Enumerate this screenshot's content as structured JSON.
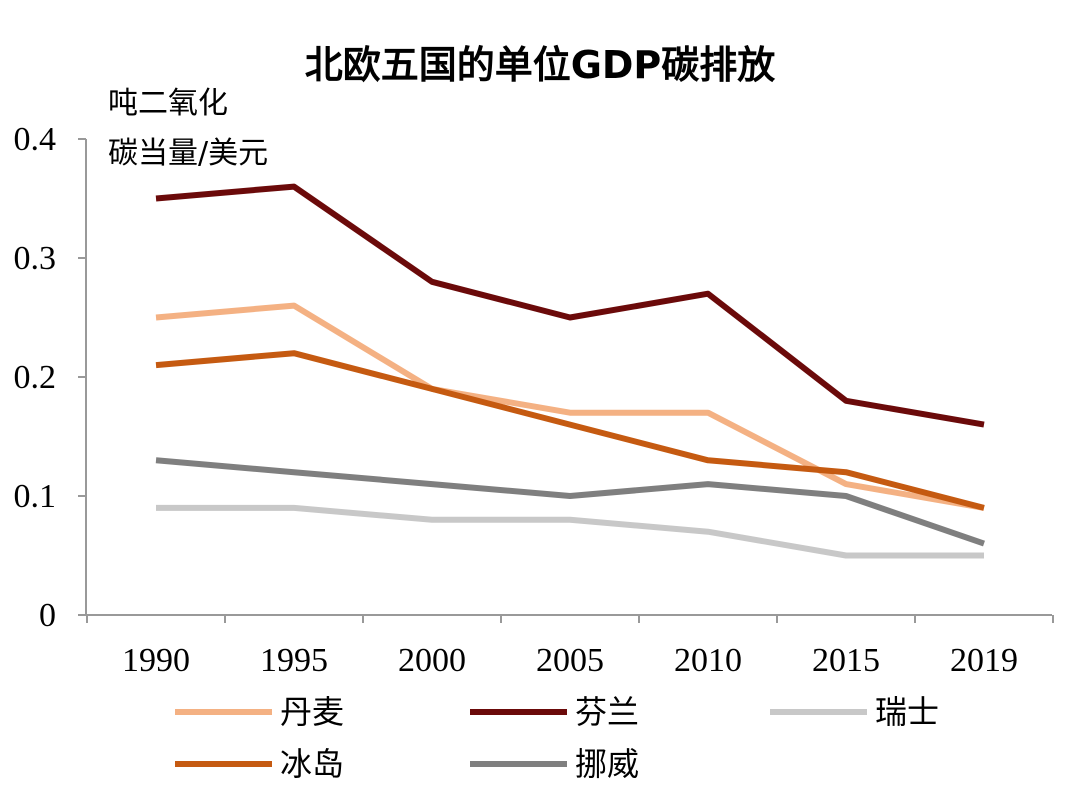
{
  "chart_data": {
    "type": "line",
    "title": "北欧五国的单位GDP碳排放",
    "ylabel_lines": [
      "吨二氧化",
      "碳当量/美元"
    ],
    "xlabel": "",
    "categories": [
      "1990",
      "1995",
      "2000",
      "2005",
      "2010",
      "2015",
      "2019"
    ],
    "ylim": [
      0,
      0.4
    ],
    "yticks": [
      "0",
      "0.1",
      "0.2",
      "0.3",
      "0.4"
    ],
    "grid": false,
    "legend_position": "bottom",
    "series": [
      {
        "name": "丹麦",
        "color": "#f4b183",
        "values": [
          0.25,
          0.26,
          0.19,
          0.17,
          0.17,
          0.11,
          0.09
        ]
      },
      {
        "name": "芬兰",
        "color": "#6b0a0a",
        "values": [
          0.35,
          0.36,
          0.28,
          0.25,
          0.27,
          0.18,
          0.16
        ]
      },
      {
        "name": "瑞士",
        "color": "#c8c8c8",
        "values": [
          0.09,
          0.09,
          0.08,
          0.08,
          0.07,
          0.05,
          0.05
        ]
      },
      {
        "name": "冰岛",
        "color": "#c55a11",
        "values": [
          0.21,
          0.22,
          0.19,
          0.16,
          0.13,
          0.12,
          0.09
        ]
      },
      {
        "name": "挪威",
        "color": "#7f7f7f",
        "values": [
          0.13,
          0.12,
          0.11,
          0.1,
          0.11,
          0.1,
          0.06
        ]
      }
    ]
  }
}
